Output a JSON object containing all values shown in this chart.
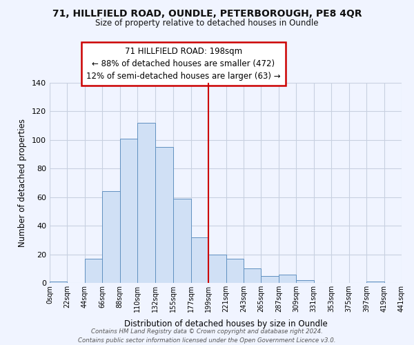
{
  "title_line1": "71, HILLFIELD ROAD, OUNDLE, PETERBOROUGH, PE8 4QR",
  "title_line2": "Size of property relative to detached houses in Oundle",
  "xlabel": "Distribution of detached houses by size in Oundle",
  "ylabel": "Number of detached properties",
  "bar_color": "#d0e0f5",
  "bar_edge_color": "#6090c0",
  "grid_color": "#c8d0e0",
  "ref_line_color": "#cc0000",
  "ref_line_x": 199,
  "bin_edges": [
    0,
    22,
    44,
    66,
    88,
    110,
    132,
    155,
    177,
    199,
    221,
    243,
    265,
    287,
    309,
    331,
    353,
    375,
    397,
    419,
    441
  ],
  "bin_labels": [
    "0sqm",
    "22sqm",
    "44sqm",
    "66sqm",
    "88sqm",
    "110sqm",
    "132sqm",
    "155sqm",
    "177sqm",
    "199sqm",
    "221sqm",
    "243sqm",
    "265sqm",
    "287sqm",
    "309sqm",
    "331sqm",
    "353sqm",
    "375sqm",
    "397sqm",
    "419sqm",
    "441sqm"
  ],
  "counts": [
    1,
    0,
    17,
    64,
    101,
    112,
    95,
    59,
    32,
    20,
    17,
    10,
    5,
    6,
    2,
    0,
    0,
    0,
    1,
    0
  ],
  "ylim": [
    0,
    140
  ],
  "yticks": [
    0,
    20,
    40,
    60,
    80,
    100,
    120,
    140
  ],
  "annotation_title": "71 HILLFIELD ROAD: 198sqm",
  "annotation_line1": "← 88% of detached houses are smaller (472)",
  "annotation_line2": "12% of semi-detached houses are larger (63) →",
  "annotation_box_color": "#ffffff",
  "annotation_box_edge": "#cc0000",
  "bg_color": "#f0f4ff",
  "footer_line1": "Contains HM Land Registry data © Crown copyright and database right 2024.",
  "footer_line2": "Contains public sector information licensed under the Open Government Licence v3.0."
}
